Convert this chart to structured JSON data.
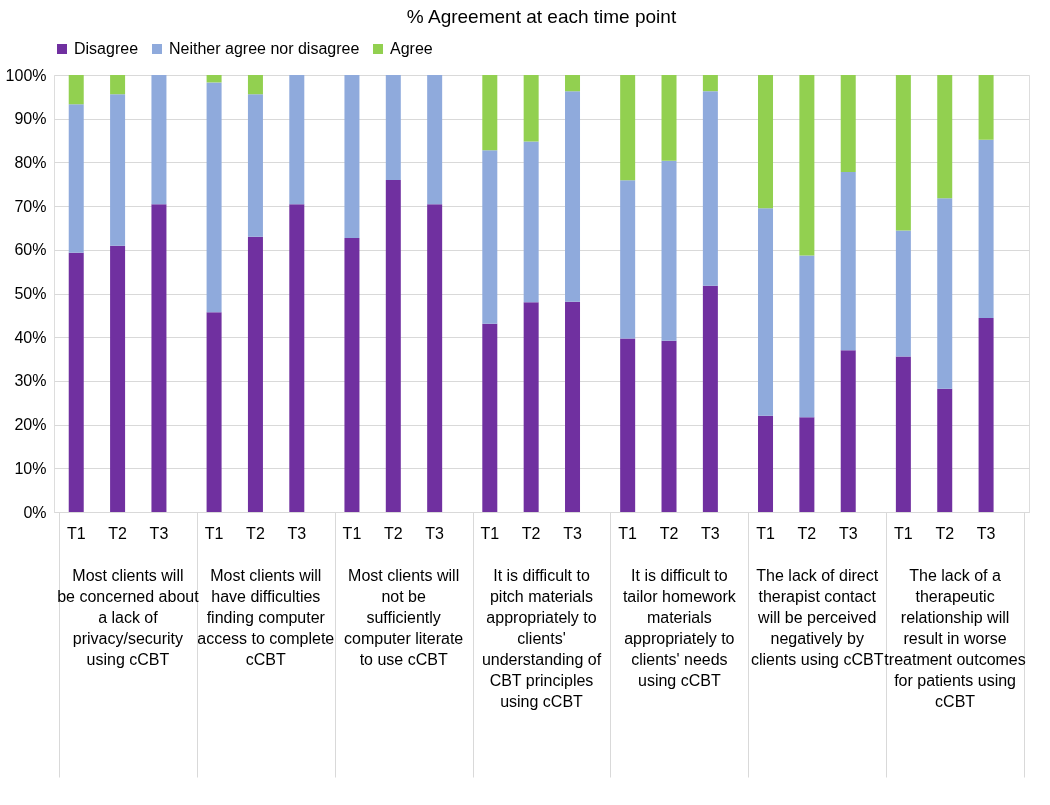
{
  "chart_data": {
    "type": "bar",
    "title": "% Agreement at each time point",
    "stacked": true,
    "legend": "top",
    "grid": "y",
    "categories": [
      "T1",
      "T2",
      "T3",
      "T1",
      "T2",
      "T3",
      "T1",
      "T2",
      "T3",
      "T1",
      "T2",
      "T3",
      "T1",
      "T2",
      "T3",
      "T1",
      "T2",
      "T3",
      "T1",
      "T2",
      "T3"
    ],
    "series": [
      {
        "name": "Disagree",
        "color": "#7030a0",
        "values": [
          59.3,
          60.9,
          70.4,
          45.7,
          63.0,
          70.4,
          62.7,
          76.0,
          70.4,
          43.1,
          48.0,
          48.1,
          39.7,
          39.2,
          51.8,
          22.0,
          21.7,
          37.0,
          35.6,
          28.2,
          44.4
        ]
      },
      {
        "name": "Neither agree nor disagree",
        "color": "#8faadc",
        "values": [
          34.0,
          34.7,
          29.6,
          52.6,
          32.6,
          29.6,
          37.3,
          24.0,
          29.6,
          39.7,
          36.8,
          48.2,
          36.2,
          41.2,
          44.5,
          47.5,
          37.0,
          40.8,
          28.8,
          43.6,
          40.8
        ]
      },
      {
        "name": "Agree",
        "color": "#92d050",
        "values": [
          6.7,
          4.4,
          0,
          1.7,
          4.4,
          0,
          0,
          0,
          0,
          17.2,
          15.2,
          3.7,
          24.1,
          19.6,
          3.7,
          30.5,
          41.3,
          22.2,
          35.6,
          28.2,
          14.8
        ]
      }
    ],
    "ylim": [
      0,
      100
    ],
    "yticks": [
      {
        "value": 0,
        "label": "0%"
      },
      {
        "value": 10,
        "label": "10%"
      },
      {
        "value": 20,
        "label": "20%"
      },
      {
        "value": 30,
        "label": "30%"
      },
      {
        "value": 40,
        "label": "40%"
      },
      {
        "value": 50,
        "label": "50%"
      },
      {
        "value": 60,
        "label": "60%"
      },
      {
        "value": 70,
        "label": "70%"
      },
      {
        "value": 80,
        "label": "80%"
      },
      {
        "value": 90,
        "label": "90%"
      },
      {
        "value": 100,
        "label": "100%"
      }
    ],
    "annotations": [
      "Most clients will be concerned about a lack of privacy/security using cCBT",
      "Most clients will have difficulties finding computer access to complete cCBT",
      "Most clients will not be sufficiently computer literate to use cCBT",
      "It is difficult to pitch materials appropriately to clients' understanding of CBT principles using cCBT",
      "It is difficult to tailor homework materials appropriately to clients' needs using cCBT",
      "The lack of direct therapist contact will be perceived negatively by clients using cCBT",
      "The lack of a therapeutic relationship will result in worse treatment outcomes for patients using cCBT"
    ]
  }
}
